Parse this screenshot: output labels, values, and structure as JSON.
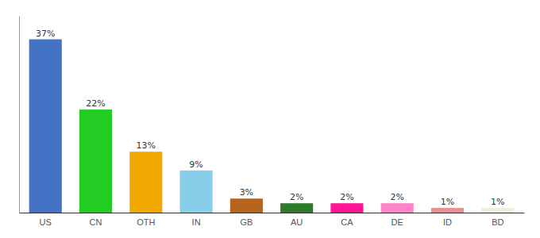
{
  "chart_data": {
    "type": "bar",
    "categories": [
      "US",
      "CN",
      "OTH",
      "IN",
      "GB",
      "AU",
      "CA",
      "DE",
      "ID",
      "BD"
    ],
    "values": [
      37,
      22,
      13,
      9,
      3,
      2,
      2,
      2,
      1,
      1
    ],
    "value_labels": [
      "37%",
      "22%",
      "13%",
      "9%",
      "3%",
      "2%",
      "2%",
      "2%",
      "1%",
      "1%"
    ],
    "colors": [
      "#4472c4",
      "#22cc22",
      "#f0a800",
      "#87ceeb",
      "#b5651d",
      "#2d7a2d",
      "#ff1493",
      "#ff85c8",
      "#e89090",
      "#f0eedc"
    ],
    "ylim": [
      0,
      42
    ],
    "data_labels": true,
    "tick_labels": "x",
    "grid": false
  }
}
